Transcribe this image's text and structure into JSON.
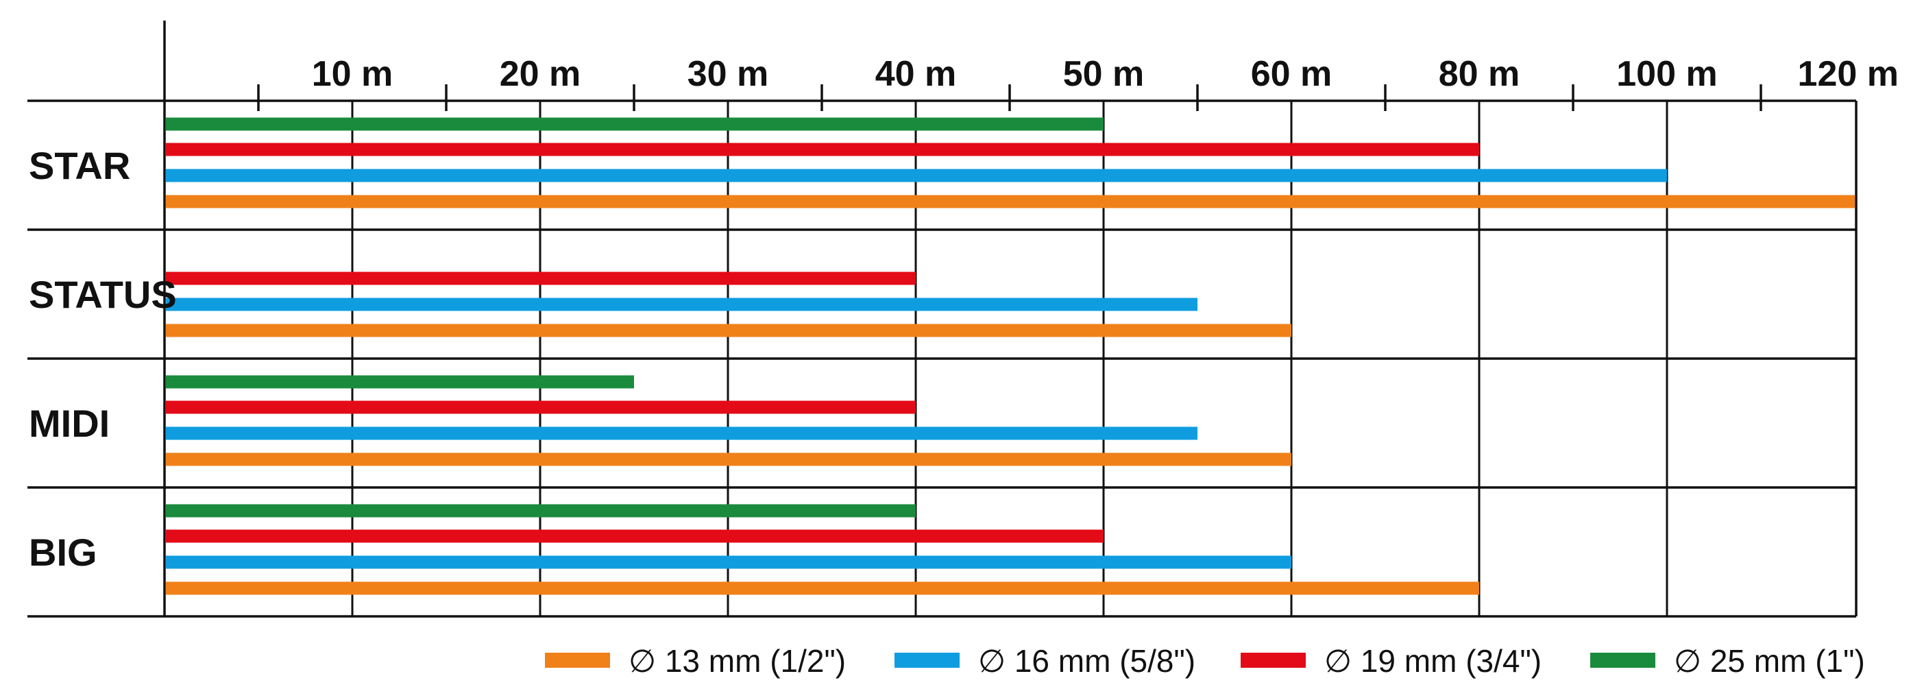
{
  "chart_data": {
    "type": "bar",
    "orientation": "horizontal",
    "categories": [
      "STAR",
      "STATUS",
      "MIDI",
      "BIG"
    ],
    "x_tick_labels": [
      "10 m",
      "20 m",
      "30 m",
      "40 m",
      "50 m",
      "60 m",
      "80 m",
      "100 m",
      "120 m"
    ],
    "series": [
      {
        "name": "∅ 25 mm (1\")",
        "color": "#1a8b3c",
        "values": [
          50,
          null,
          25,
          40
        ]
      },
      {
        "name": "∅ 19 mm (3/4\")",
        "color": "#e30b17",
        "values": [
          80,
          40,
          40,
          50
        ]
      },
      {
        "name": "∅ 16 mm (5/8\")",
        "color": "#0f9de0",
        "values": [
          100,
          55,
          55,
          60
        ]
      },
      {
        "name": "∅ 13 mm (1/2\")",
        "color": "#f08119",
        "values": [
          120,
          60,
          60,
          80
        ]
      }
    ],
    "legend_order": [
      "∅ 13 mm (1/2\")",
      "∅ 16 mm (5/8\")",
      "∅ 19 mm (3/4\")",
      "∅ 25 mm (1\")"
    ],
    "legend_position": "bottom-right",
    "grid": true,
    "xlim": [
      0,
      120
    ],
    "axis_note": "x axis is non-linear: equal spacing 0-60 m in 10 m steps, then 80, 100, 120 m"
  }
}
